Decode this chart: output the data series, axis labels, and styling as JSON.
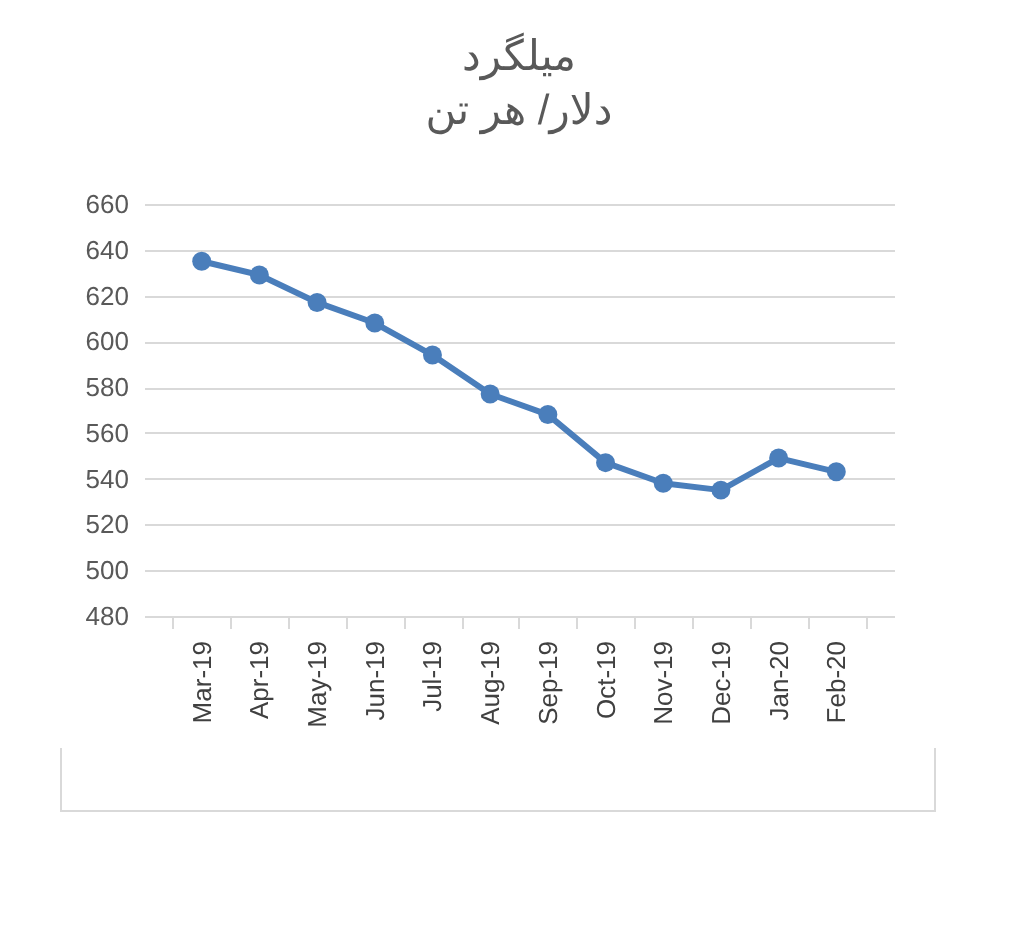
{
  "chart_data": {
    "type": "line",
    "title": "میلگرد",
    "subtitle": "دلار/ هر تن",
    "categories": [
      "Mar-19",
      "Apr-19",
      "May-19",
      "Jun-19",
      "Jul-19",
      "Aug-19",
      "Sep-19",
      "Oct-19",
      "Nov-19",
      "Dec-19",
      "Jan-20",
      "Feb-20"
    ],
    "series": [
      {
        "color": "#4a7ebb",
        "values": [
          635,
          629,
          617,
          608,
          594,
          577,
          568,
          547,
          538,
          535,
          549,
          543
        ]
      }
    ],
    "ylim": [
      480,
      660
    ],
    "yticks": [
      480,
      500,
      520,
      540,
      560,
      580,
      600,
      620,
      640,
      660
    ],
    "grid": "y",
    "legend": false,
    "marker": "circle",
    "line_style": "solid"
  }
}
